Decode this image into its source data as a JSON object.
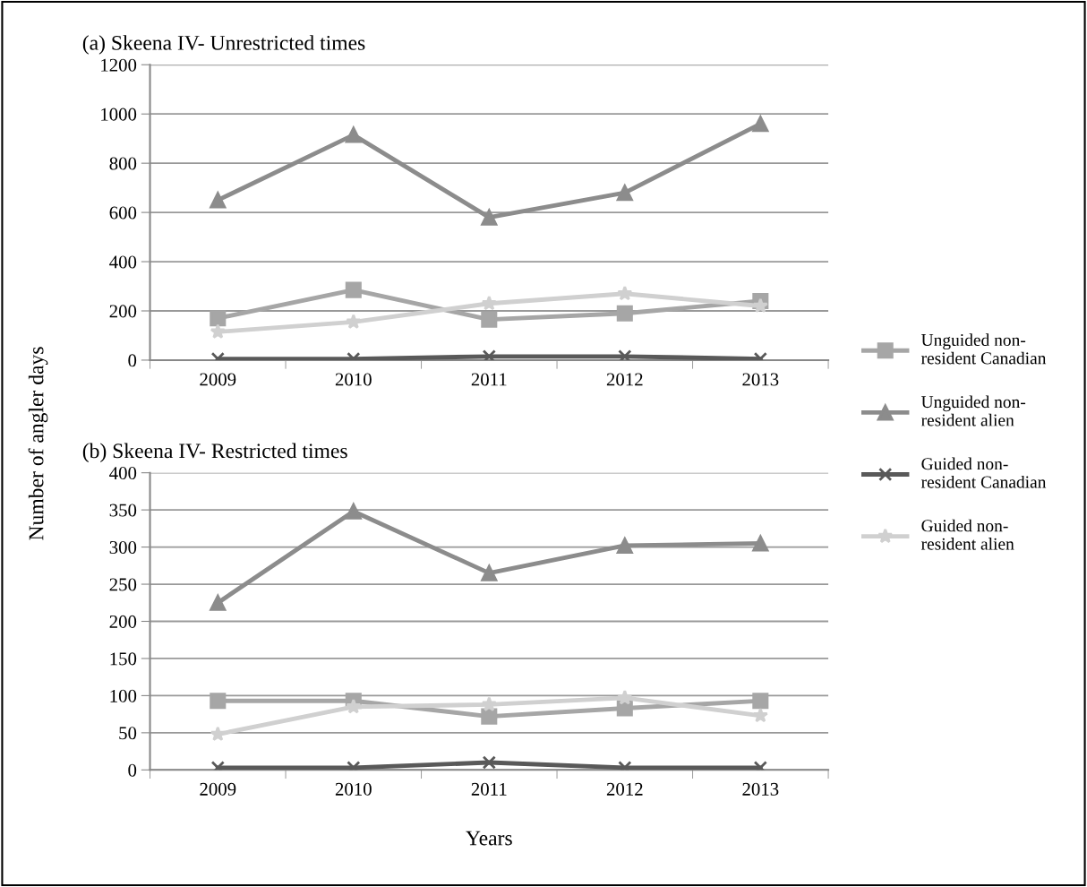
{
  "chart_data": [
    {
      "type": "line",
      "title": "(a) Skeena IV- Unrestricted times",
      "ylabel": "Number of angler days",
      "categories": [
        "2009",
        "2010",
        "2011",
        "2012",
        "2013"
      ],
      "ylim": [
        0,
        1200
      ],
      "yticks": [
        0,
        200,
        400,
        600,
        800,
        1000,
        1200
      ],
      "grid": "y",
      "legend": "right",
      "series": [
        {
          "name": "Unguided non-resident Canadian",
          "color": "#a6a6a6",
          "marker": "square",
          "values": [
            170,
            285,
            165,
            190,
            240
          ]
        },
        {
          "name": "Unguided non-resident alien",
          "color": "#8c8c8c",
          "marker": "triangle",
          "values": [
            650,
            915,
            580,
            680,
            960
          ]
        },
        {
          "name": "Guided non-resident Canadian",
          "color": "#595959",
          "marker": "cross",
          "values": [
            5,
            5,
            15,
            15,
            5
          ]
        },
        {
          "name": "Guided non-resident alien",
          "color": "#d0d0d0",
          "marker": "star",
          "values": [
            115,
            155,
            230,
            270,
            220
          ]
        }
      ]
    },
    {
      "type": "line",
      "title": "(b) Skeena IV- Restricted times",
      "xlabel": "Years",
      "categories": [
        "2009",
        "2010",
        "2011",
        "2012",
        "2013"
      ],
      "ylim": [
        0,
        400
      ],
      "yticks": [
        0,
        50,
        100,
        150,
        200,
        250,
        300,
        350,
        400
      ],
      "grid": "y",
      "series": [
        {
          "color": "#a6a6a6",
          "marker": "square",
          "values": [
            93,
            93,
            72,
            83,
            93
          ]
        },
        {
          "color": "#8c8c8c",
          "marker": "triangle",
          "values": [
            225,
            348,
            265,
            302,
            305
          ]
        },
        {
          "color": "#595959",
          "marker": "cross",
          "values": [
            3,
            3,
            10,
            3,
            3
          ]
        },
        {
          "color": "#d0d0d0",
          "marker": "star",
          "values": [
            48,
            85,
            88,
            97,
            73
          ]
        }
      ]
    }
  ]
}
